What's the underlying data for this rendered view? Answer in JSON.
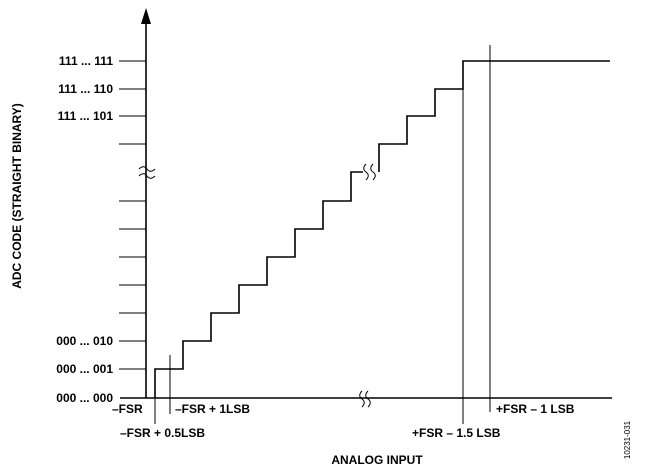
{
  "chart_data": {
    "type": "line",
    "xlabel": "ANALOG INPUT",
    "ylabel": "ADC CODE (STRAIGHT BINARY)",
    "y_tick_labels": [
      "000 ... 000",
      "000 ... 001",
      "000 ... 010",
      "111 ... 101",
      "111 ... 110",
      "111 ... 111"
    ],
    "x_annotations": [
      "–FSR",
      "–FSR + 0.5LSB",
      "–FSR + 1LSB",
      "+FSR – 1.5 LSB",
      "+FSR – 1 LSB"
    ],
    "axis_breaks": [
      "x",
      "y",
      "staircase"
    ],
    "figure_id": "10231-031"
  }
}
